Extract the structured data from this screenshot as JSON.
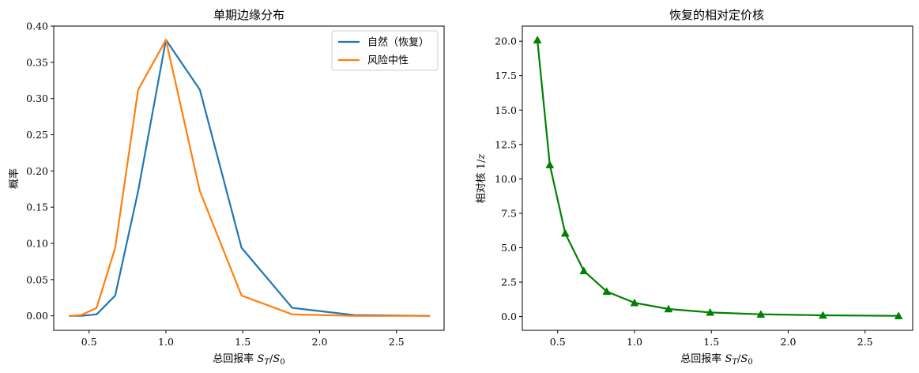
{
  "chart_data": [
    {
      "type": "line",
      "title": "单期边缘分布",
      "xlabel": "总回报率 S_T/S_0",
      "xlabel_parts": {
        "main": "总回报率 ",
        "S": "S",
        "T": "T",
        "slash": "/",
        "S0": "S",
        "zero": "0"
      },
      "ylabel": "概率",
      "xlim": [
        0.27,
        2.81
      ],
      "ylim": [
        -0.02,
        0.4
      ],
      "xticks": [
        "0.5",
        "1.0",
        "1.5",
        "2.0",
        "2.5"
      ],
      "xtick_values": [
        0.5,
        1.0,
        1.5,
        2.0,
        2.5
      ],
      "yticks": [
        "0.00",
        "0.05",
        "0.10",
        "0.15",
        "0.20",
        "0.25",
        "0.30",
        "0.35",
        "0.40"
      ],
      "ytick_values": [
        0.0,
        0.05,
        0.1,
        0.15,
        0.2,
        0.25,
        0.3,
        0.35,
        0.4
      ],
      "x": [
        0.368,
        0.449,
        0.549,
        0.67,
        0.819,
        1.0,
        1.221,
        1.492,
        1.822,
        2.226,
        2.718
      ],
      "series": [
        {
          "name": "自然（恢复）",
          "color": "#1f77b4",
          "values": [
            0.0,
            0.0,
            0.002,
            0.028,
            0.172,
            0.381,
            0.312,
            0.094,
            0.011,
            0.001,
            0.0
          ]
        },
        {
          "name": "风险中性",
          "color": "#ff7f0e",
          "values": [
            0.0,
            0.001,
            0.011,
            0.094,
            0.312,
            0.381,
            0.172,
            0.028,
            0.002,
            0.0,
            0.0
          ]
        }
      ],
      "legend": "top-right",
      "grid": false
    },
    {
      "type": "line",
      "title": "恢复的相对定价核",
      "xlabel": "总回报率 S_T/S_0",
      "xlabel_parts": {
        "main": "总回报率 ",
        "S": "S",
        "T": "T",
        "slash": "/",
        "S0": "S",
        "zero": "0"
      },
      "ylabel": "相对核 1/z",
      "ylabel_parts": {
        "main": "相对核 1/",
        "z": "z"
      },
      "xlim": [
        0.27,
        2.81
      ],
      "ylim": [
        -1.0,
        21.1
      ],
      "xticks": [
        "0.5",
        "1.0",
        "1.5",
        "2.0",
        "2.5"
      ],
      "xtick_values": [
        0.5,
        1.0,
        1.5,
        2.0,
        2.5
      ],
      "yticks": [
        "0.0",
        "2.5",
        "5.0",
        "7.5",
        "10.0",
        "12.5",
        "15.0",
        "17.5",
        "20.0"
      ],
      "ytick_values": [
        0.0,
        2.5,
        5.0,
        7.5,
        10.0,
        12.5,
        15.0,
        17.5,
        20.0
      ],
      "x": [
        0.368,
        0.449,
        0.549,
        0.67,
        0.819,
        1.0,
        1.221,
        1.492,
        1.822,
        2.226,
        2.718
      ],
      "series": [
        {
          "color": "#008000",
          "marker": "triangle-up",
          "values": [
            20.09,
            11.02,
            6.05,
            3.32,
            1.82,
            1.0,
            0.55,
            0.3,
            0.165,
            0.091,
            0.05
          ]
        }
      ],
      "grid": false
    }
  ]
}
